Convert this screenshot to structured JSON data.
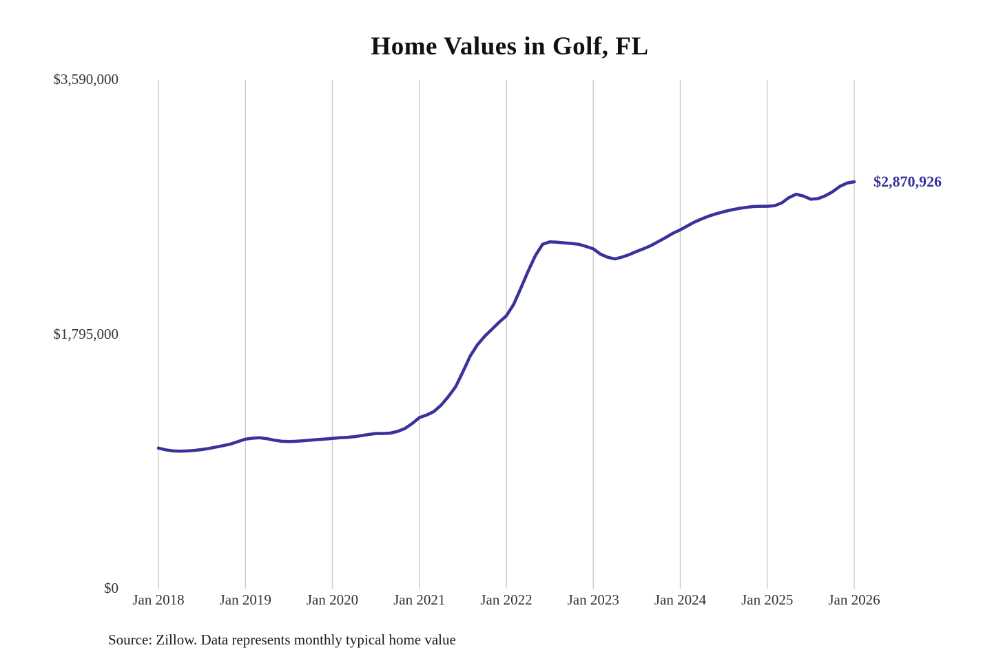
{
  "title": "Home Values in Golf, FL",
  "source_note": "Source: Zillow. Data represents monthly typical home value",
  "end_label": "$2,870,926",
  "colors": {
    "line": "#39329b",
    "accent": "#39329b",
    "grid": "#cccccc",
    "tick_label": "#333333",
    "title": "#111111"
  },
  "chart_data": {
    "type": "line",
    "title": "Home Values in Golf, FL",
    "x_unit": "month",
    "x_tick_labels": [
      "Jan 2018",
      "Jan 2019",
      "Jan 2020",
      "Jan 2021",
      "Jan 2022",
      "Jan 2023",
      "Jan 2024",
      "Jan 2025",
      "Jan 2026"
    ],
    "y_ticks": [
      {
        "label": "$0",
        "value": 0
      },
      {
        "label": "$1,795,000",
        "value": 1795000
      },
      {
        "label": "$3,590,000",
        "value": 3590000
      }
    ],
    "ylim": [
      0,
      3590000
    ],
    "grid": "vertical-only",
    "legend": "none",
    "final_value": 2870926,
    "final_value_label": "$2,870,926",
    "series": [
      {
        "name": "Typical home value",
        "start": "2018-01",
        "end": "2026-01",
        "monthly_values": [
          992000,
          980000,
          972000,
          970000,
          972000,
          976000,
          982000,
          990000,
          1000000,
          1010000,
          1021000,
          1038000,
          1055000,
          1062000,
          1065000,
          1058000,
          1048000,
          1040000,
          1038000,
          1040000,
          1044000,
          1048000,
          1052000,
          1056000,
          1060000,
          1065000,
          1068000,
          1072000,
          1080000,
          1088000,
          1095000,
          1095000,
          1098000,
          1110000,
          1130000,
          1165000,
          1207000,
          1225000,
          1250000,
          1295000,
          1355000,
          1425000,
          1530000,
          1640000,
          1720000,
          1780000,
          1830000,
          1880000,
          1925000,
          2005000,
          2120000,
          2240000,
          2350000,
          2430000,
          2447000,
          2445000,
          2440000,
          2436000,
          2430000,
          2415000,
          2398000,
          2360000,
          2338000,
          2327000,
          2340000,
          2358000,
          2380000,
          2400000,
          2422000,
          2450000,
          2478000,
          2508000,
          2532000,
          2560000,
          2588000,
          2610000,
          2630000,
          2646000,
          2660000,
          2672000,
          2682000,
          2690000,
          2696000,
          2698000,
          2698000,
          2702000,
          2722000,
          2760000,
          2783000,
          2770000,
          2748000,
          2752000,
          2772000,
          2800000,
          2838000,
          2862000,
          2870926
        ]
      }
    ]
  }
}
